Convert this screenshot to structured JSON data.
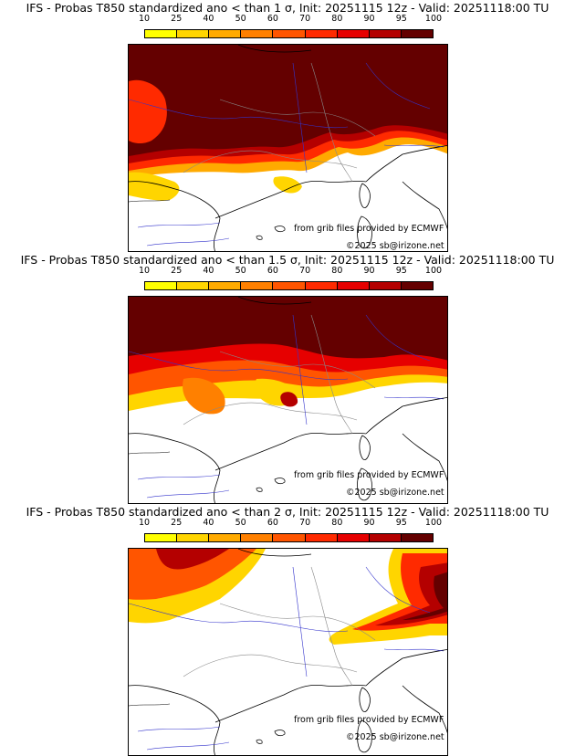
{
  "panels": [
    {
      "title": "IFS - Probas T850  standardized ano < than 1 σ, Init: 20251115 12z - Valid: 20251118:00 TU"
    },
    {
      "title": "IFS - Probas T850  standardized ano < than 1.5 σ, Init: 20251115 12z - Valid: 20251118:00 TU"
    },
    {
      "title": "IFS - Probas T850  standardized ano < than 2 σ, Init: 20251115 12z - Valid: 20251118:00 TU"
    }
  ],
  "colorbar": {
    "ticks": [
      "10",
      "25",
      "40",
      "50",
      "60",
      "70",
      "80",
      "90",
      "95",
      "100"
    ],
    "colors": [
      "#ffff00",
      "#ffd500",
      "#ffaa00",
      "#ff8000",
      "#ff5500",
      "#ff2a00",
      "#e60000",
      "#b40000",
      "#640000"
    ]
  },
  "credit": {
    "source": "from grib files provided by ECMWF",
    "copyright": "©2025 sb@irizone.net"
  }
}
